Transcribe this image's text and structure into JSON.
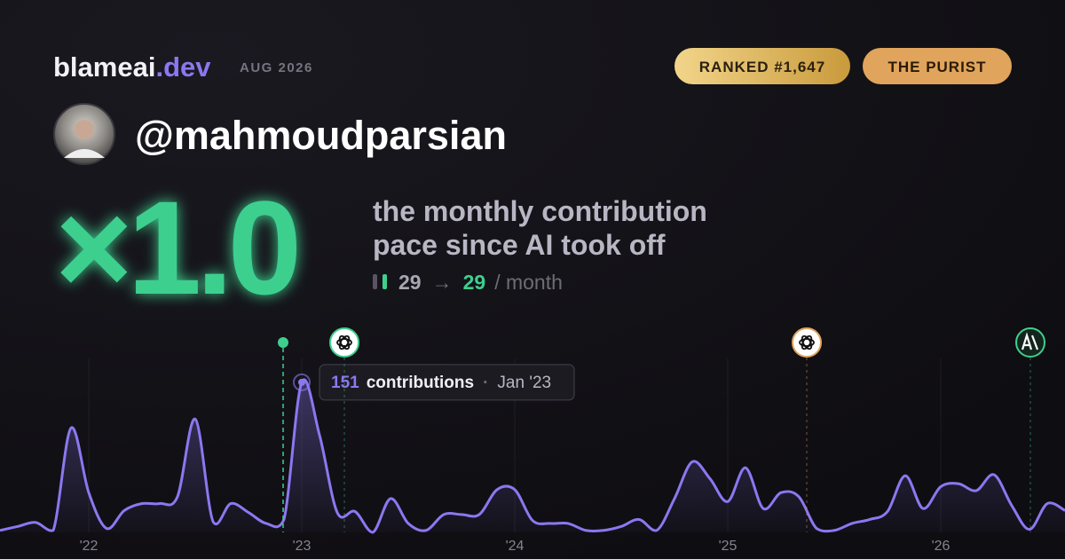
{
  "header": {
    "brand": "blameai",
    "brand_suffix": ".dev",
    "period": "AUG 2026",
    "rank": "RANKED #1,647",
    "persona": "THE PURIST",
    "handle": "@mahmoudparsian"
  },
  "headline": {
    "multiplier": "×1.0",
    "line1": "the monthly contribution",
    "line2": "pace since AI took off",
    "before": "29",
    "arrow": "→",
    "after": "29",
    "unit": "/ month"
  },
  "chart_data": {
    "type": "line",
    "categories": [
      null,
      null,
      null,
      null,
      null,
      "'22",
      null,
      null,
      null,
      null,
      null,
      null,
      null,
      null,
      null,
      null,
      null,
      "'23",
      null,
      null,
      null,
      null,
      null,
      null,
      null,
      null,
      null,
      null,
      null,
      "'24",
      null,
      null,
      null,
      null,
      null,
      null,
      null,
      null,
      null,
      null,
      null,
      "'25",
      null,
      null,
      null,
      null,
      null,
      null,
      null,
      null,
      null,
      null,
      null,
      "'26",
      null,
      null,
      null,
      null,
      null,
      null,
      null
    ],
    "series": [
      {
        "name": "contributions",
        "color": "#8b78f0",
        "values": [
          2,
          6,
          10,
          2,
          105,
          40,
          4,
          22,
          29,
          29,
          36,
          114,
          11,
          29,
          20,
          9,
          13,
          151,
          98,
          20,
          21,
          0,
          34,
          9,
          2,
          18,
          18,
          18,
          43,
          43,
          12,
          9,
          9,
          2,
          2,
          6,
          13,
          2,
          34,
          71,
          54,
          31,
          65,
          24,
          40,
          36,
          4,
          2,
          9,
          13,
          21,
          57,
          24,
          46,
          49,
          42,
          58,
          27,
          3,
          29,
          22
        ]
      }
    ],
    "ylim": [
      0,
      175
    ],
    "tooltip": {
      "label": "contributions",
      "date": "Jan '23"
    }
  }
}
